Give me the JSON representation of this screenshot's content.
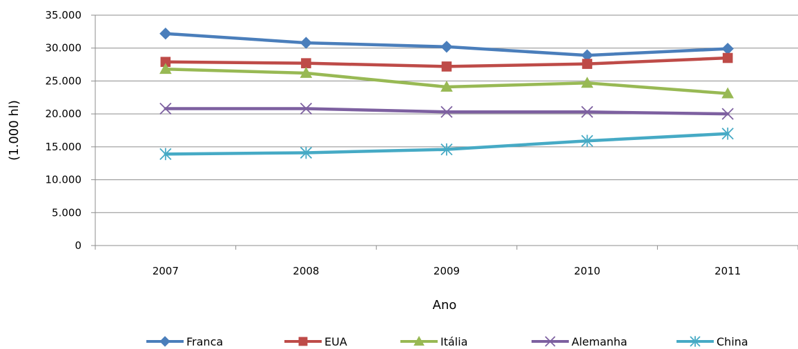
{
  "chart_data": {
    "type": "line",
    "title": "",
    "xlabel": "Ano",
    "ylabel": "(1.000 hl)",
    "categories": [
      "2007",
      "2008",
      "2009",
      "2010",
      "2011"
    ],
    "ylim": [
      0,
      35000
    ],
    "yticks": [
      0,
      5000,
      10000,
      15000,
      20000,
      25000,
      30000,
      35000
    ],
    "ytick_labels": [
      "0",
      "5.000",
      "10.000",
      "15.000",
      "20.000",
      "25.000",
      "30.000",
      "35.000"
    ],
    "grid": "horizontal",
    "legend_position": "bottom",
    "series": [
      {
        "name": "Franca",
        "color": "#4a7ebb",
        "marker": "diamond",
        "values": [
          32200,
          30800,
          30200,
          28900,
          29900
        ]
      },
      {
        "name": "EUA",
        "color": "#be4b48",
        "marker": "square",
        "values": [
          27900,
          27700,
          27200,
          27600,
          28500
        ]
      },
      {
        "name": "Itália",
        "color": "#98b954",
        "marker": "triangle",
        "values": [
          26800,
          26200,
          24100,
          24700,
          23100
        ]
      },
      {
        "name": "Alemanha",
        "color": "#7d60a0",
        "marker": "x",
        "values": [
          20800,
          20800,
          20300,
          20300,
          20000
        ]
      },
      {
        "name": "China",
        "color": "#46aac5",
        "marker": "star",
        "values": [
          13900,
          14100,
          14600,
          15900,
          17000
        ]
      }
    ]
  }
}
